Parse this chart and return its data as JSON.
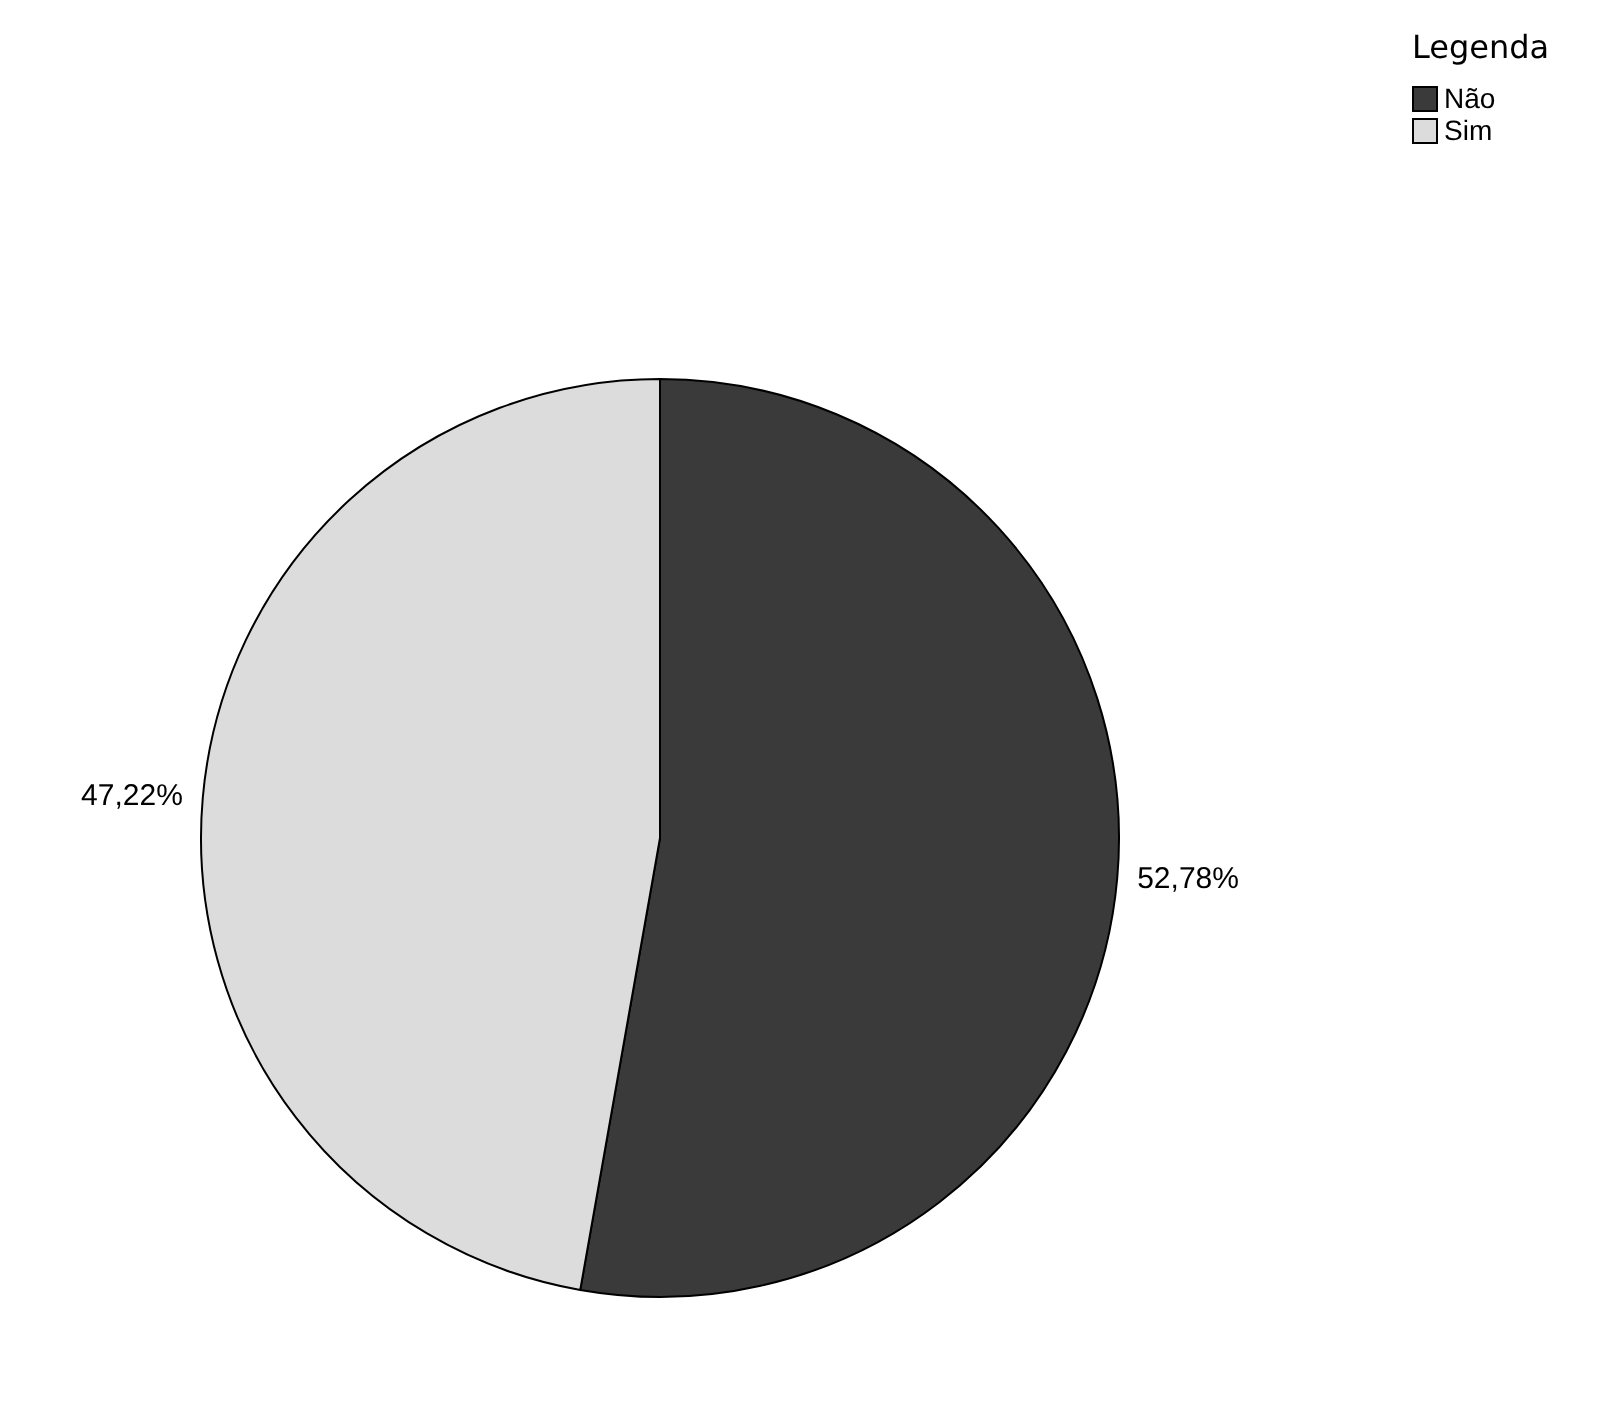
{
  "chart_data": {
    "type": "pie",
    "categories": [
      "Não",
      "Sim"
    ],
    "values": [
      52.78,
      47.22
    ],
    "colors": [
      "#3a3a3a",
      "#dcdcdc"
    ],
    "value_labels": [
      "52,78%",
      "47,22%"
    ],
    "legend_title": "Legenda",
    "legend": "top right"
  }
}
